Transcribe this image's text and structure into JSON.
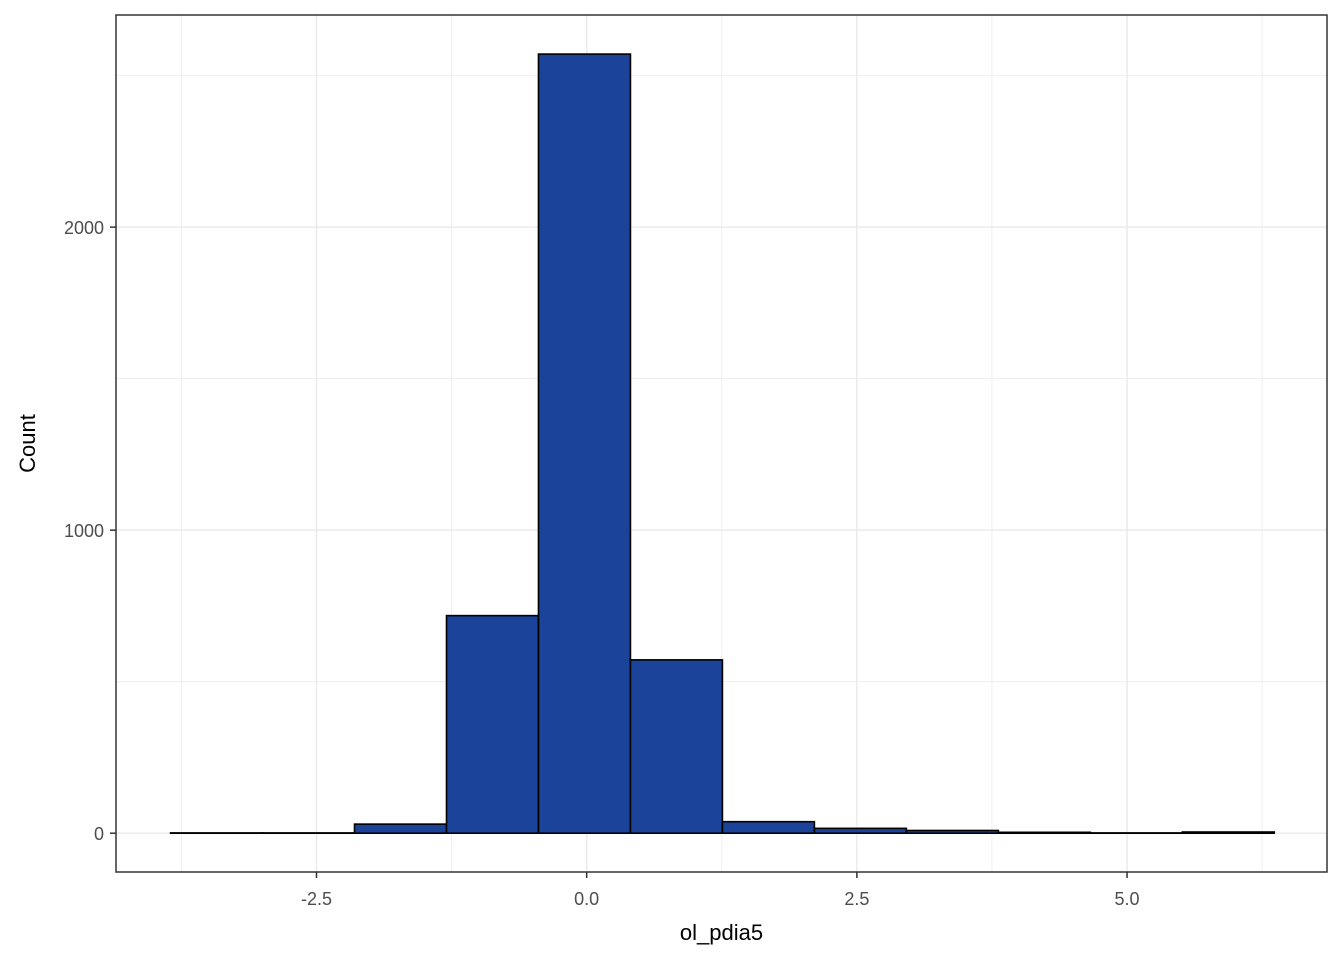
{
  "chart_data": {
    "type": "bar",
    "title": "",
    "xlabel": "ol_pdia5",
    "ylabel": "Count",
    "xlim": [
      -4.355,
      6.85
    ],
    "ylim": [
      -128,
      2700
    ],
    "x_ticks": [
      -2.5,
      0.0,
      2.5,
      5.0
    ],
    "x_tick_labels": [
      "-2.5",
      "0.0",
      "2.5",
      "5.0"
    ],
    "y_ticks": [
      0,
      1000,
      2000
    ],
    "y_tick_labels": [
      "0",
      "1000",
      "2000"
    ],
    "grid": true,
    "bin_width": 0.851,
    "bins": [
      {
        "x0": -3.85,
        "x1": -2.999,
        "count": 1
      },
      {
        "x0": -2.999,
        "x1": -2.148,
        "count": 1
      },
      {
        "x0": -2.148,
        "x1": -1.297,
        "count": 30
      },
      {
        "x0": -1.297,
        "x1": -0.446,
        "count": 718
      },
      {
        "x0": -0.446,
        "x1": 0.405,
        "count": 2571
      },
      {
        "x0": 0.405,
        "x1": 1.256,
        "count": 572
      },
      {
        "x0": 1.256,
        "x1": 2.107,
        "count": 38
      },
      {
        "x0": 2.107,
        "x1": 2.958,
        "count": 16
      },
      {
        "x0": 2.958,
        "x1": 3.809,
        "count": 9
      },
      {
        "x0": 3.809,
        "x1": 4.66,
        "count": 3
      },
      {
        "x0": 4.66,
        "x1": 5.511,
        "count": 1
      },
      {
        "x0": 5.511,
        "x1": 6.362,
        "count": 4
      }
    ],
    "fill_color": "#1a4399",
    "stroke_color": "#000000",
    "grid_color": "#ebebeb",
    "panel_border_color": "#333333"
  }
}
